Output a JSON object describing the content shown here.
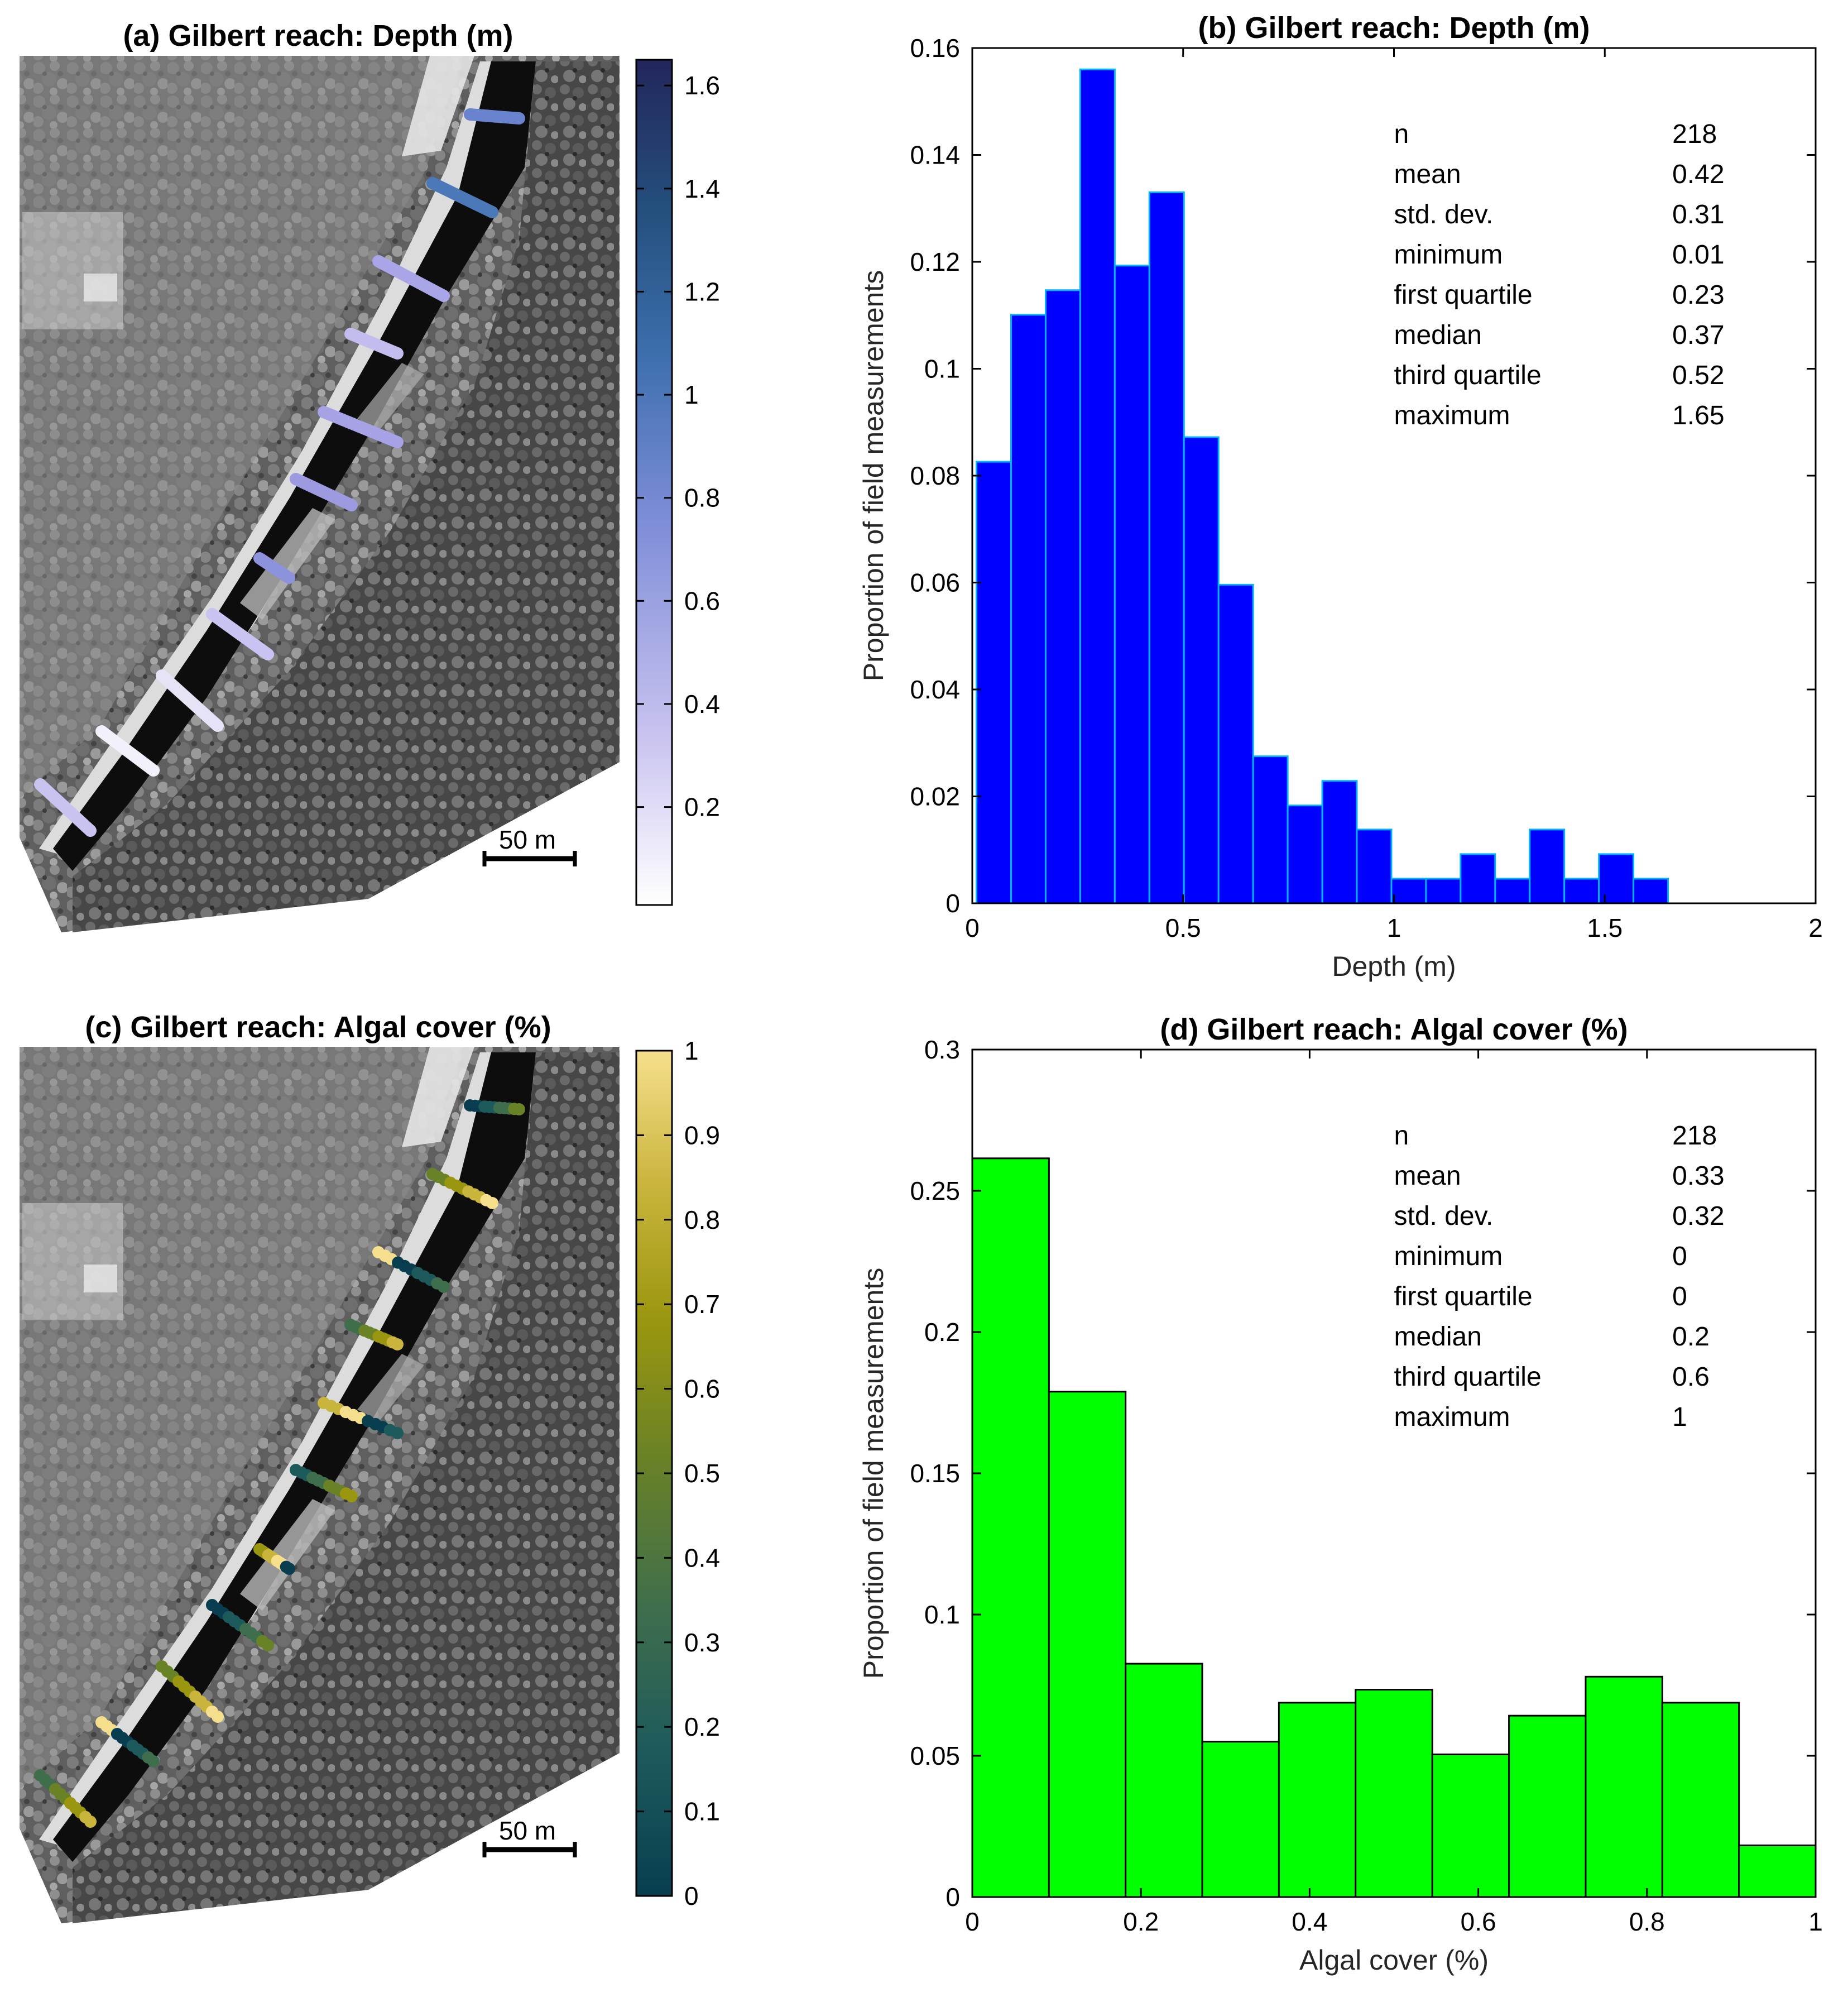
{
  "figure": {
    "map_depth_title": "(a) Gilbert reach: Depth (m)",
    "map_algal_title": "(c) Gilbert reach: Algal cover (%)",
    "scale_bar_label": "50 m"
  },
  "colorbars": {
    "depth": {
      "ticks": [
        "0.2",
        "0.4",
        "0.6",
        "0.8",
        "1",
        "1.2",
        "1.4",
        "1.6"
      ],
      "tick_values": [
        0.2,
        0.4,
        0.6,
        0.8,
        1.0,
        1.2,
        1.4,
        1.6
      ],
      "range": [
        0.01,
        1.65
      ],
      "colors": [
        "#ffffff",
        "#c9c3f0",
        "#7f8ed8",
        "#3d6fad",
        "#24507e",
        "#23265a"
      ]
    },
    "algal": {
      "ticks": [
        "0",
        "0.1",
        "0.2",
        "0.3",
        "0.4",
        "0.5",
        "0.6",
        "0.7",
        "0.8",
        "0.9",
        "1"
      ],
      "tick_values": [
        0,
        0.1,
        0.2,
        0.3,
        0.4,
        0.5,
        0.6,
        0.7,
        0.8,
        0.9,
        1.0
      ],
      "range": [
        0,
        1
      ],
      "colors": [
        "#083e4f",
        "#1d5a5c",
        "#3f6e4c",
        "#6a8226",
        "#9a960f",
        "#c9b43c",
        "#f6df8c"
      ]
    }
  },
  "chart_data": [
    {
      "type": "bar",
      "title": "(b) Gilbert reach: Depth (m)",
      "xlabel": "Depth (m)",
      "ylabel": "Proportion of field measurements",
      "xlim": [
        0,
        2
      ],
      "ylim": [
        0,
        0.16
      ],
      "xticks": [
        "0",
        "0.5",
        "1",
        "1.5",
        "2"
      ],
      "xtick_values": [
        0,
        0.5,
        1,
        1.5,
        2
      ],
      "yticks": [
        "0",
        "0.02",
        "0.04",
        "0.06",
        "0.08",
        "0.1",
        "0.12",
        "0.14",
        "0.16"
      ],
      "ytick_values": [
        0,
        0.02,
        0.04,
        0.06,
        0.08,
        0.1,
        0.12,
        0.14,
        0.16
      ],
      "bin_edges": [
        0.01,
        0.092,
        0.174,
        0.256,
        0.338,
        0.42,
        0.502,
        0.584,
        0.666,
        0.748,
        0.83,
        0.912,
        0.994,
        1.076,
        1.158,
        1.24,
        1.322,
        1.404,
        1.486,
        1.568,
        1.65
      ],
      "values": [
        0.0826,
        0.1101,
        0.1147,
        0.156,
        0.1193,
        0.133,
        0.0872,
        0.0596,
        0.0275,
        0.0183,
        0.0229,
        0.0138,
        0.0046,
        0.0046,
        0.0092,
        0.0046,
        0.0138,
        0.0046,
        0.0092,
        0.0046
      ],
      "bar_color": "#0000ff",
      "edge_color": "#00b4ff",
      "stats": [
        {
          "label": "n",
          "value": "218"
        },
        {
          "label": "mean",
          "value": "0.42"
        },
        {
          "label": "std. dev.",
          "value": "0.31"
        },
        {
          "label": "minimum",
          "value": "0.01"
        },
        {
          "label": "first quartile",
          "value": "0.23"
        },
        {
          "label": "median",
          "value": "0.37"
        },
        {
          "label": "third quartile",
          "value": "0.52"
        },
        {
          "label": "maximum",
          "value": "1.65"
        }
      ]
    },
    {
      "type": "bar",
      "title": "(d) Gilbert reach: Algal cover (%)",
      "xlabel": "Algal cover (%)",
      "ylabel": "Proportion of field measurements",
      "xlim": [
        0,
        1
      ],
      "ylim": [
        0,
        0.3
      ],
      "xticks": [
        "0",
        "0.2",
        "0.4",
        "0.6",
        "0.8",
        "1"
      ],
      "xtick_values": [
        0,
        0.2,
        0.4,
        0.6,
        0.8,
        1
      ],
      "yticks": [
        "0",
        "0.05",
        "0.1",
        "0.15",
        "0.2",
        "0.25",
        "0.3"
      ],
      "ytick_values": [
        0,
        0.05,
        0.1,
        0.15,
        0.2,
        0.25,
        0.3
      ],
      "bin_edges": [
        0,
        0.0909,
        0.1818,
        0.2727,
        0.3636,
        0.4545,
        0.5455,
        0.6364,
        0.7273,
        0.8182,
        0.9091,
        1.0
      ],
      "values": [
        0.2615,
        0.1789,
        0.0826,
        0.055,
        0.0688,
        0.0734,
        0.0505,
        0.0642,
        0.078,
        0.0688,
        0.0183
      ],
      "bar_color": "#00ff00",
      "edge_color": "#000000",
      "stats": [
        {
          "label": "n",
          "value": "218"
        },
        {
          "label": "mean",
          "value": "0.33"
        },
        {
          "label": "std. dev.",
          "value": "0.32"
        },
        {
          "label": "minimum",
          "value": "0"
        },
        {
          "label": "first quartile",
          "value": "0"
        },
        {
          "label": "median",
          "value": "0.2"
        },
        {
          "label": "third quartile",
          "value": "0.6"
        },
        {
          "label": "maximum",
          "value": "1"
        }
      ]
    }
  ]
}
